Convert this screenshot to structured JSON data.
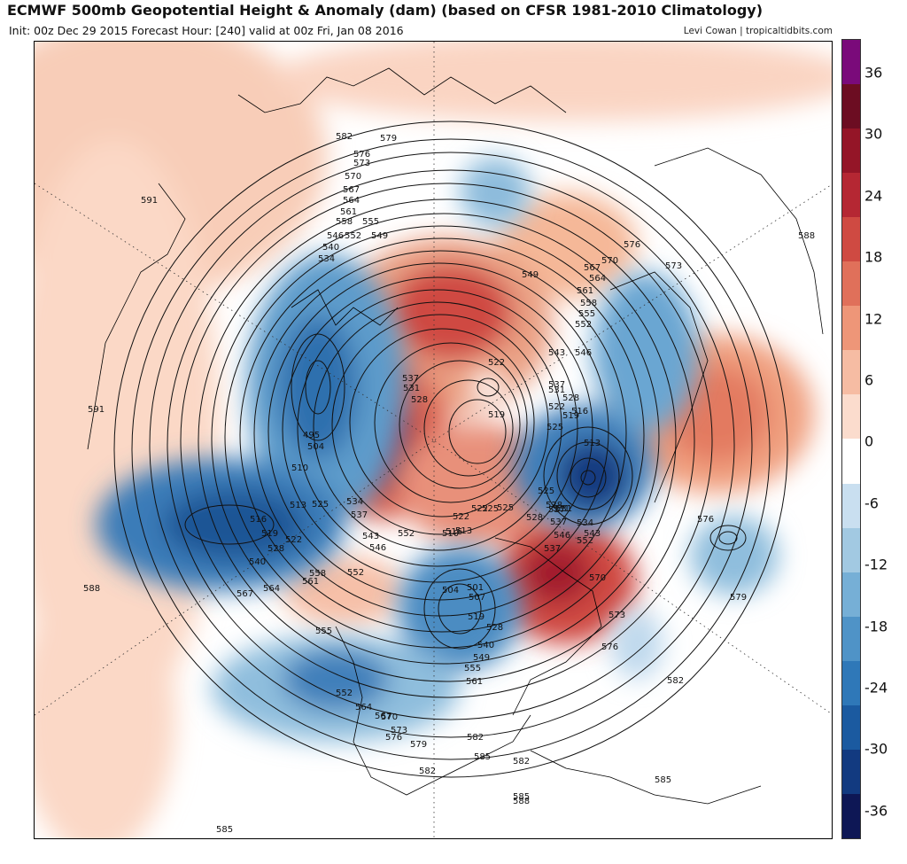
{
  "header": {
    "title": "ECMWF 500mb Geopotential Height & Anomaly (dam) (based on CFSR 1981-2010 Climatology)",
    "subtitle": "Init: 00z Dec 29 2015   Forecast Hour: [240]   valid at 00z Fri, Jan 08 2016",
    "credit": "Levi Cowan | tropicaltidbits.com"
  },
  "colorbar": {
    "labels": [
      "36",
      "30",
      "24",
      "18",
      "12",
      "6",
      "0",
      "-6",
      "-12",
      "-18",
      "-24",
      "-30",
      "-36"
    ],
    "colors": [
      "#0e1755",
      "#123a80",
      "#1b5aa0",
      "#2f78b8",
      "#4f93c7",
      "#76afd6",
      "#a2c9e2",
      "#c9dff0",
      "#ffffff",
      "#fbdccd",
      "#f6bca3",
      "#ee9678",
      "#e0705a",
      "#cf4a42",
      "#b52733",
      "#941527",
      "#6c0d22",
      "#7a0a7a"
    ]
  },
  "contour_labels": [
    {
      "t": "591"
    },
    {
      "t": "591"
    },
    {
      "t": "588"
    },
    {
      "t": "588"
    },
    {
      "t": "585"
    },
    {
      "t": "585"
    },
    {
      "t": "585"
    },
    {
      "t": "588"
    },
    {
      "t": "582"
    },
    {
      "t": "579"
    },
    {
      "t": "576"
    },
    {
      "t": "573"
    },
    {
      "t": "570"
    },
    {
      "t": "567"
    },
    {
      "t": "564"
    },
    {
      "t": "561"
    },
    {
      "t": "558"
    },
    {
      "t": "555"
    },
    {
      "t": "552"
    },
    {
      "t": "549"
    },
    {
      "t": "546"
    },
    {
      "t": "540"
    },
    {
      "t": "534"
    },
    {
      "t": "537"
    },
    {
      "t": "531"
    },
    {
      "t": "522"
    },
    {
      "t": "528"
    },
    {
      "t": "519"
    },
    {
      "t": "549"
    },
    {
      "t": "576"
    },
    {
      "t": "570"
    },
    {
      "t": "567"
    },
    {
      "t": "573"
    },
    {
      "t": "564"
    },
    {
      "t": "561"
    },
    {
      "t": "558"
    },
    {
      "t": "555"
    },
    {
      "t": "552"
    },
    {
      "t": "543"
    },
    {
      "t": "546"
    },
    {
      "t": "537"
    },
    {
      "t": "531"
    },
    {
      "t": "528"
    },
    {
      "t": "522"
    },
    {
      "t": "519"
    },
    {
      "t": "516"
    },
    {
      "t": "525"
    },
    {
      "t": "513"
    },
    {
      "t": "525"
    },
    {
      "t": "531"
    },
    {
      "t": "537"
    },
    {
      "t": "534"
    },
    {
      "t": "543"
    },
    {
      "t": "546"
    },
    {
      "t": "552"
    },
    {
      "t": "570"
    },
    {
      "t": "573"
    },
    {
      "t": "576"
    },
    {
      "t": "576"
    },
    {
      "t": "579"
    },
    {
      "t": "582"
    },
    {
      "t": "495"
    },
    {
      "t": "504"
    },
    {
      "t": "510"
    },
    {
      "t": "513"
    },
    {
      "t": "525"
    },
    {
      "t": "516"
    },
    {
      "t": "519"
    },
    {
      "t": "522"
    },
    {
      "t": "528"
    },
    {
      "t": "540"
    },
    {
      "t": "567"
    },
    {
      "t": "564"
    },
    {
      "t": "561"
    },
    {
      "t": "558"
    },
    {
      "t": "552"
    },
    {
      "t": "534"
    },
    {
      "t": "537"
    },
    {
      "t": "543"
    },
    {
      "t": "546"
    },
    {
      "t": "525"
    },
    {
      "t": "522"
    },
    {
      "t": "516"
    },
    {
      "t": "510"
    },
    {
      "t": "513"
    },
    {
      "t": "504"
    },
    {
      "t": "501"
    },
    {
      "t": "507"
    },
    {
      "t": "519"
    },
    {
      "t": "528"
    },
    {
      "t": "540"
    },
    {
      "t": "549"
    },
    {
      "t": "555"
    },
    {
      "t": "561"
    },
    {
      "t": "555"
    },
    {
      "t": "552"
    },
    {
      "t": "564"
    },
    {
      "t": "567"
    },
    {
      "t": "570"
    },
    {
      "t": "573"
    },
    {
      "t": "576"
    },
    {
      "t": "579"
    },
    {
      "t": "582"
    },
    {
      "t": "582"
    },
    {
      "t": "585"
    },
    {
      "t": "582"
    },
    {
      "t": "528"
    },
    {
      "t": "537"
    },
    {
      "t": "525"
    },
    {
      "t": "522"
    },
    {
      "t": "528"
    },
    {
      "t": "531"
    },
    {
      "t": "537"
    },
    {
      "t": "552"
    }
  ]
}
